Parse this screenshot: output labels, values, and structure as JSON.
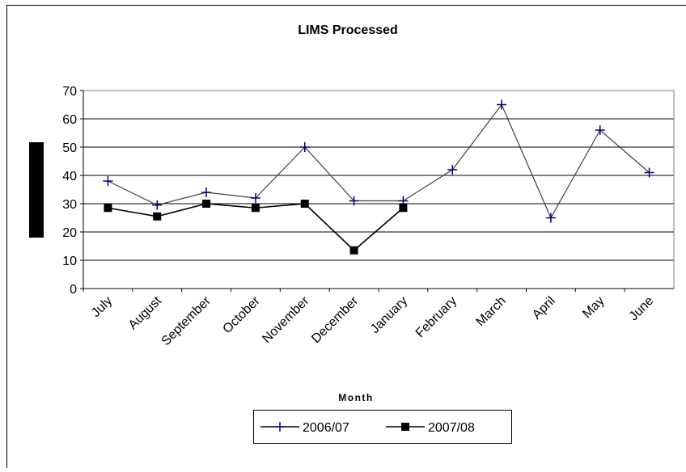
{
  "chart_data": {
    "type": "line",
    "title": "LIMS Processed",
    "x_label": "Month",
    "categories": [
      "July",
      "August",
      "September",
      "October",
      "November",
      "December",
      "January",
      "February",
      "March",
      "April",
      "May",
      "June"
    ],
    "series": [
      {
        "name": "2006/07",
        "color": "#000080",
        "marker": "plus",
        "values": [
          38,
          29.5,
          34,
          32,
          50,
          31,
          31,
          42,
          65,
          25,
          56,
          41
        ]
      },
      {
        "name": "2007/08",
        "color": "#000000",
        "marker": "square",
        "values": [
          28.5,
          25.5,
          30,
          28.5,
          30,
          13.5,
          28.5,
          null,
          null,
          null,
          null,
          null
        ]
      }
    ],
    "ylim": [
      0,
      70
    ],
    "yticks": [
      0,
      10,
      20,
      30,
      40,
      50,
      60,
      70
    ],
    "grid": true,
    "legend": "bottom"
  }
}
